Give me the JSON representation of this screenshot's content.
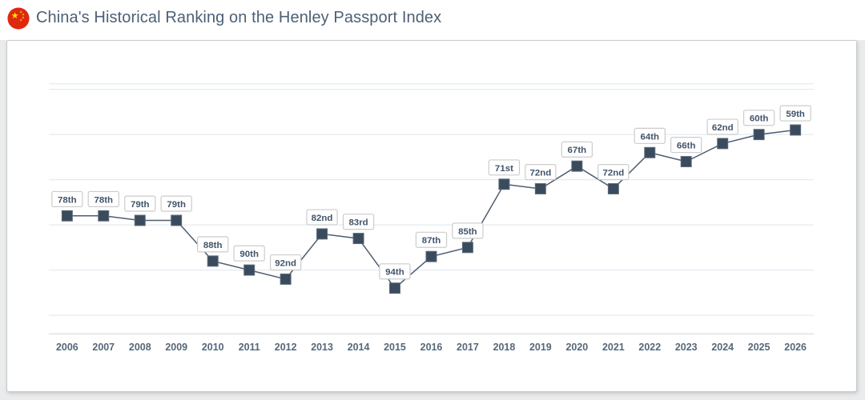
{
  "page": {
    "title": "China's Historical Ranking on the Henley Passport Index"
  },
  "colors": {
    "title_text": "#4c6076",
    "line": "#4d5d6f",
    "marker_fill": "#3a4b5d",
    "marker_stroke": "#5a6a7a",
    "label_text": "#42546a",
    "label_border": "#cccccc",
    "label_bg": "#ffffff",
    "gridline": "#e5ebf2",
    "axis_line": "#d6d9dd",
    "year_text": "#56687a",
    "flag_red": "#de2910",
    "flag_yellow": "#ffde00",
    "card_border": "#c7c9cb",
    "page_bg": "#eaebec"
  },
  "chart_data": {
    "type": "line",
    "title": "China's Historical Ranking on the Henley Passport Index",
    "x": [
      2006,
      2007,
      2008,
      2009,
      2010,
      2011,
      2012,
      2013,
      2014,
      2015,
      2016,
      2017,
      2018,
      2019,
      2020,
      2021,
      2022,
      2023,
      2024,
      2025,
      2026
    ],
    "values": [
      78,
      78,
      79,
      79,
      88,
      90,
      92,
      82,
      83,
      94,
      87,
      85,
      71,
      72,
      67,
      72,
      64,
      66,
      62,
      60,
      59
    ],
    "point_labels": [
      "78th",
      "78th",
      "79th",
      "79th",
      "88th",
      "90th",
      "92nd",
      "82nd",
      "83rd",
      "94th",
      "87th",
      "85th",
      "71st",
      "72nd",
      "67th",
      "72nd",
      "64th",
      "66th",
      "62nd",
      "60th",
      "59th"
    ],
    "xlabel": "",
    "ylabel": "",
    "y_axis_reversed": true,
    "ylim": [
      50,
      100
    ],
    "grid": true,
    "gridline_ranks": [
      50,
      60,
      70,
      80,
      90,
      100
    ],
    "legend": "none",
    "marker_shape": "square"
  }
}
